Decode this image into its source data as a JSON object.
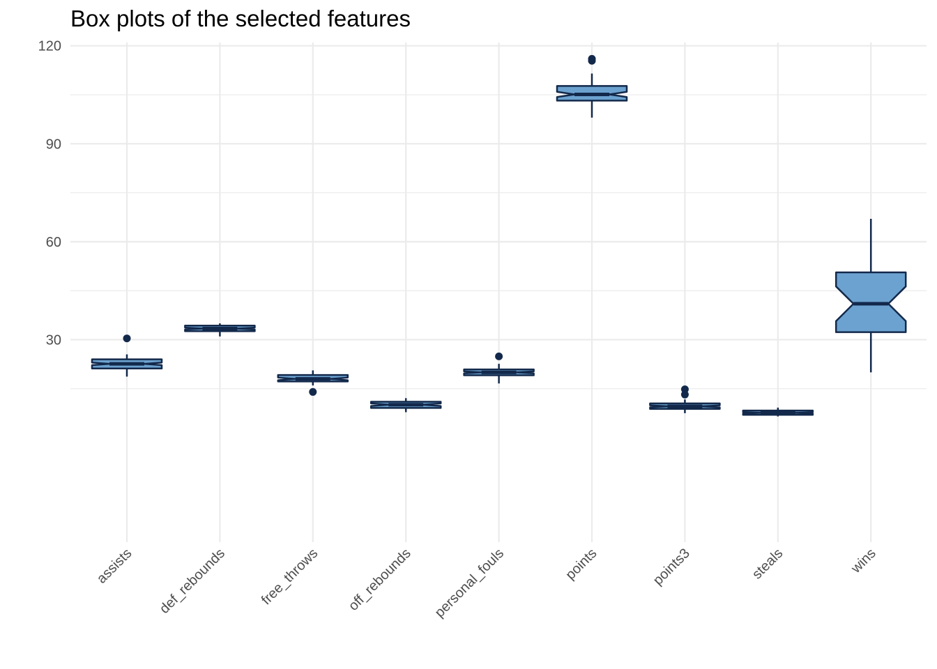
{
  "chart_data": {
    "type": "box",
    "notched": true,
    "title": "Box plots of the selected features",
    "xlabel": "",
    "ylabel": "",
    "ylim": [
      -32,
      121
    ],
    "y_ticks": [
      30,
      60,
      90,
      120
    ],
    "y_minor_ticks": [
      15,
      45,
      75,
      105
    ],
    "grid": true,
    "legend": "none",
    "colors": {
      "box_fill": "#6ca2cf",
      "box_stroke": "#13294b",
      "grid": "#ebebeb",
      "tick_text": "#4d4d4d"
    },
    "categories": [
      "assists",
      "def_rebounds",
      "free_throws",
      "off_rebounds",
      "personal_fouls",
      "points",
      "points3",
      "steals",
      "wins"
    ],
    "series": [
      {
        "name": "assists",
        "whisker_low": 18.7,
        "q1": 21.2,
        "median": 22.6,
        "q3": 24.0,
        "whisker_high": 25.5,
        "notch_low": 22.2,
        "notch_high": 23.0,
        "outliers": [
          30.4
        ]
      },
      {
        "name": "def_rebounds",
        "whisker_low": 31.0,
        "q1": 32.6,
        "median": 33.4,
        "q3": 34.3,
        "whisker_high": 35.0,
        "notch_low": 33.1,
        "notch_high": 33.7,
        "outliers": []
      },
      {
        "name": "free_throws",
        "whisker_low": 16.0,
        "q1": 17.2,
        "median": 18.0,
        "q3": 19.2,
        "whisker_high": 20.6,
        "notch_low": 17.6,
        "notch_high": 18.4,
        "outliers": [
          14.0
        ]
      },
      {
        "name": "off_rebounds",
        "whisker_low": 7.8,
        "q1": 9.1,
        "median": 10.1,
        "q3": 11.0,
        "whisker_high": 12.1,
        "notch_low": 9.7,
        "notch_high": 10.5,
        "outliers": []
      },
      {
        "name": "personal_fouls",
        "whisker_low": 16.6,
        "q1": 19.1,
        "median": 20.0,
        "q3": 20.9,
        "whisker_high": 22.6,
        "notch_low": 19.7,
        "notch_high": 20.3,
        "outliers": [
          24.9
        ]
      },
      {
        "name": "points",
        "whisker_low": 98.0,
        "q1": 103.2,
        "median": 105.1,
        "q3": 107.7,
        "whisker_high": 111.5,
        "notch_low": 104.3,
        "notch_high": 105.9,
        "outliers": [
          115.4,
          116.0
        ]
      },
      {
        "name": "points3",
        "whisker_low": 7.5,
        "q1": 8.8,
        "median": 9.6,
        "q3": 10.5,
        "whisker_high": 11.7,
        "notch_low": 9.3,
        "notch_high": 9.9,
        "outliers": [
          13.2,
          14.8
        ]
      },
      {
        "name": "steals",
        "whisker_low": 6.5,
        "q1": 7.0,
        "median": 7.6,
        "q3": 8.3,
        "whisker_high": 9.2,
        "notch_low": 7.4,
        "notch_high": 7.8,
        "outliers": []
      },
      {
        "name": "wins",
        "whisker_low": 20.0,
        "q1": 32.3,
        "median": 41.0,
        "q3": 50.6,
        "whisker_high": 67.0,
        "notch_low": 35.7,
        "notch_high": 46.3,
        "outliers": []
      }
    ]
  }
}
